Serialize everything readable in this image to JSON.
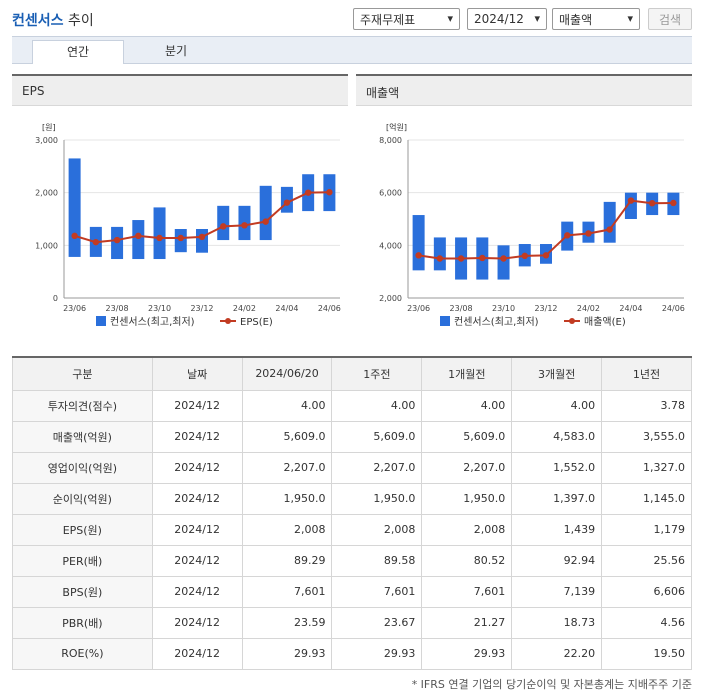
{
  "header": {
    "title_main": "컨센서스",
    "title_sub": "추이",
    "select_period_type": "주재무제표",
    "select_date": "2024/12",
    "select_metric": "매출액",
    "search_label": "검색"
  },
  "tabs": [
    {
      "label": "연간",
      "active": true
    },
    {
      "label": "분기",
      "active": false
    }
  ],
  "panels": {
    "eps_title": "EPS",
    "sales_title": "매출액"
  },
  "colors": {
    "bar": "#2a6fdb",
    "line": "#c23b22",
    "accent": "#1a5fb4"
  },
  "chart_data": [
    {
      "type": "bar",
      "title": "EPS",
      "ylabel": "[원]",
      "ylim": [
        0,
        3000
      ],
      "yticks": [
        "0",
        "1,000",
        "2,000",
        "3,000"
      ],
      "categories": [
        "23/06",
        "23/07",
        "23/08",
        "23/09",
        "23/10",
        "23/11",
        "23/12",
        "24/01",
        "24/02",
        "24/03",
        "24/04",
        "24/05",
        "24/06"
      ],
      "xtick_labels": [
        "23/06",
        "23/08",
        "23/10",
        "23/12",
        "24/02",
        "24/04",
        "24/06"
      ],
      "series": [
        {
          "name": "컨센서스(최고,최저)",
          "type": "range_bar",
          "high": [
            2650,
            1350,
            1350,
            1480,
            1720,
            1310,
            1310,
            1750,
            1750,
            2130,
            2110,
            2350,
            2350
          ],
          "low": [
            780,
            780,
            740,
            740,
            740,
            870,
            860,
            1100,
            1100,
            1100,
            1620,
            1650,
            1650
          ]
        },
        {
          "name": "EPS(E)",
          "type": "line",
          "values": [
            1180,
            1060,
            1100,
            1180,
            1140,
            1140,
            1160,
            1360,
            1380,
            1450,
            1810,
            2000,
            2008
          ]
        }
      ],
      "legend": "bottom"
    },
    {
      "type": "bar",
      "title": "매출액",
      "ylabel": "[억원]",
      "ylim": [
        2000,
        8000
      ],
      "yticks": [
        "2,000",
        "4,000",
        "6,000",
        "8,000"
      ],
      "categories": [
        "23/06",
        "23/07",
        "23/08",
        "23/09",
        "23/10",
        "23/11",
        "23/12",
        "24/01",
        "24/02",
        "24/03",
        "24/04",
        "24/05",
        "24/06"
      ],
      "xtick_labels": [
        "23/06",
        "23/08",
        "23/10",
        "23/12",
        "24/02",
        "24/04",
        "24/06"
      ],
      "series": [
        {
          "name": "컨센서스(최고,최저)",
          "type": "range_bar",
          "high": [
            5150,
            4300,
            4300,
            4300,
            4000,
            4050,
            4050,
            4900,
            4900,
            5650,
            6000,
            6000,
            6000
          ],
          "low": [
            3050,
            3050,
            2700,
            2700,
            2700,
            3200,
            3300,
            3800,
            4100,
            4100,
            5000,
            5150,
            5150
          ]
        },
        {
          "name": "매출액(E)",
          "type": "line",
          "values": [
            3620,
            3500,
            3500,
            3520,
            3500,
            3600,
            3620,
            4380,
            4450,
            4600,
            5700,
            5600,
            5609
          ]
        }
      ],
      "legend": "bottom"
    }
  ],
  "table": {
    "headers": [
      "구분",
      "날짜",
      "2024/06/20",
      "1주전",
      "1개월전",
      "3개월전",
      "1년전"
    ],
    "rows": [
      {
        "label": "투자의견(점수)",
        "date": "2024/12",
        "values": [
          "4.00",
          "4.00",
          "4.00",
          "4.00",
          "3.78"
        ]
      },
      {
        "label": "매출액(억원)",
        "date": "2024/12",
        "values": [
          "5,609.0",
          "5,609.0",
          "5,609.0",
          "4,583.0",
          "3,555.0"
        ]
      },
      {
        "label": "영업이익(억원)",
        "date": "2024/12",
        "values": [
          "2,207.0",
          "2,207.0",
          "2,207.0",
          "1,552.0",
          "1,327.0"
        ]
      },
      {
        "label": "순이익(억원)",
        "date": "2024/12",
        "values": [
          "1,950.0",
          "1,950.0",
          "1,950.0",
          "1,397.0",
          "1,145.0"
        ]
      },
      {
        "label": "EPS(원)",
        "date": "2024/12",
        "values": [
          "2,008",
          "2,008",
          "2,008",
          "1,439",
          "1,179"
        ]
      },
      {
        "label": "PER(배)",
        "date": "2024/12",
        "values": [
          "89.29",
          "89.58",
          "80.52",
          "92.94",
          "25.56"
        ]
      },
      {
        "label": "BPS(원)",
        "date": "2024/12",
        "values": [
          "7,601",
          "7,601",
          "7,601",
          "7,139",
          "6,606"
        ]
      },
      {
        "label": "PBR(배)",
        "date": "2024/12",
        "values": [
          "23.59",
          "23.67",
          "21.27",
          "18.73",
          "4.56"
        ]
      },
      {
        "label": "ROE(%)",
        "date": "2024/12",
        "values": [
          "29.93",
          "29.93",
          "29.93",
          "22.20",
          "19.50"
        ]
      }
    ]
  },
  "footnote": "* IFRS 연결 기업의 당기순이익 및 자본총계는 지배주주 기준"
}
